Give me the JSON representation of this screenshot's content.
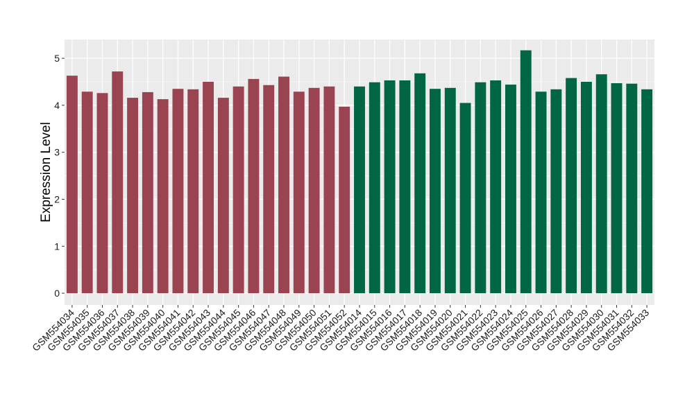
{
  "chart_data": {
    "type": "bar",
    "title": "",
    "xlabel": "",
    "ylabel": "Expression Level",
    "ylim": [
      -0.25,
      5.4
    ],
    "yticks": [
      0,
      1,
      2,
      3,
      4,
      5
    ],
    "grid": true,
    "legend": "none",
    "categories": [
      "GSM554034",
      "GSM554035",
      "GSM554036",
      "GSM554037",
      "GSM554038",
      "GSM554039",
      "GSM554040",
      "GSM554041",
      "GSM554042",
      "GSM554043",
      "GSM554044",
      "GSM554045",
      "GSM554046",
      "GSM554047",
      "GSM554048",
      "GSM554049",
      "GSM554050",
      "GSM554051",
      "GSM554052",
      "GSM554014",
      "GSM554015",
      "GSM554016",
      "GSM554017",
      "GSM554018",
      "GSM554019",
      "GSM554020",
      "GSM554021",
      "GSM554022",
      "GSM554023",
      "GSM554024",
      "GSM554025",
      "GSM554026",
      "GSM554027",
      "GSM554028",
      "GSM554029",
      "GSM554030",
      "GSM554031",
      "GSM554032",
      "GSM554033"
    ],
    "values": [
      4.63,
      4.29,
      4.26,
      4.72,
      4.16,
      4.28,
      4.13,
      4.35,
      4.34,
      4.5,
      4.16,
      4.4,
      4.56,
      4.43,
      4.61,
      4.29,
      4.37,
      4.4,
      3.97,
      4.4,
      4.49,
      4.53,
      4.53,
      4.68,
      4.35,
      4.37,
      4.05,
      4.49,
      4.53,
      4.44,
      5.17,
      4.29,
      4.34,
      4.58,
      4.5,
      4.66,
      4.47,
      4.46,
      4.34
    ],
    "groups": [
      {
        "count": 19,
        "color": "#9b4451"
      },
      {
        "count": 20,
        "color": "#006644"
      }
    ],
    "panel_background": "#ebebeb",
    "grid_color": "#ffffff"
  }
}
